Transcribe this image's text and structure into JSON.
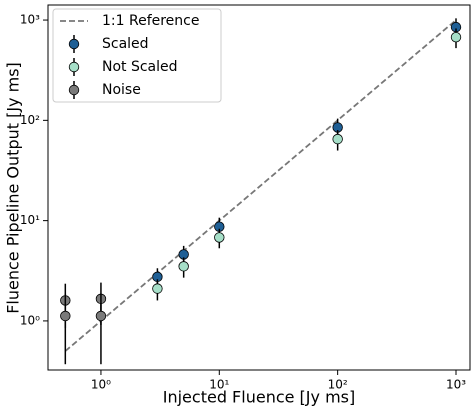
{
  "chart_data": {
    "type": "scatter",
    "xlabel": "Injected Fluence [Jy ms]",
    "ylabel": "Fluence Pipeline Output [Jy ms]",
    "xlog": true,
    "ylog": true,
    "xlim": [
      0.357,
      1313
    ],
    "ylim": [
      0.324,
      1413
    ],
    "xticks": [
      {
        "value": 1,
        "label": "10⁰"
      },
      {
        "value": 10,
        "label": "10¹"
      },
      {
        "value": 100,
        "label": "10²"
      },
      {
        "value": 1000,
        "label": "10³"
      }
    ],
    "yticks": [
      {
        "value": 1,
        "label": "10⁰"
      },
      {
        "value": 10,
        "label": "10¹"
      },
      {
        "value": 100,
        "label": "10²"
      },
      {
        "value": 1000,
        "label": "10³"
      }
    ],
    "legend": "upper left",
    "series": [
      {
        "name": "1:1 Reference",
        "color": "#777777",
        "line_style": "dashed",
        "x": [
          0.5,
          1000
        ],
        "values": [
          0.5,
          1000
        ]
      },
      {
        "name": "Scaled",
        "color": "#1f5f95",
        "x": [
          3,
          5,
          10,
          100,
          1000
        ],
        "values": [
          2.75,
          4.6,
          8.7,
          85,
          850
        ],
        "errors": [
          0.6,
          1.0,
          2.0,
          19,
          190
        ]
      },
      {
        "name": "Not Scaled",
        "color": "#a6dfc8",
        "x": [
          3,
          5,
          10,
          100,
          1000
        ],
        "values": [
          2.1,
          3.5,
          6.8,
          65,
          675
        ],
        "errors": [
          0.5,
          0.8,
          1.5,
          15,
          150
        ]
      },
      {
        "name": "Noise",
        "color": "#7a7a7a",
        "x": [
          0.5,
          0.5,
          1,
          1
        ],
        "values": [
          1.6,
          1.12,
          1.66,
          1.12
        ],
        "errors": [
          0.75,
          0.75,
          0.75,
          0.75
        ]
      }
    ]
  }
}
